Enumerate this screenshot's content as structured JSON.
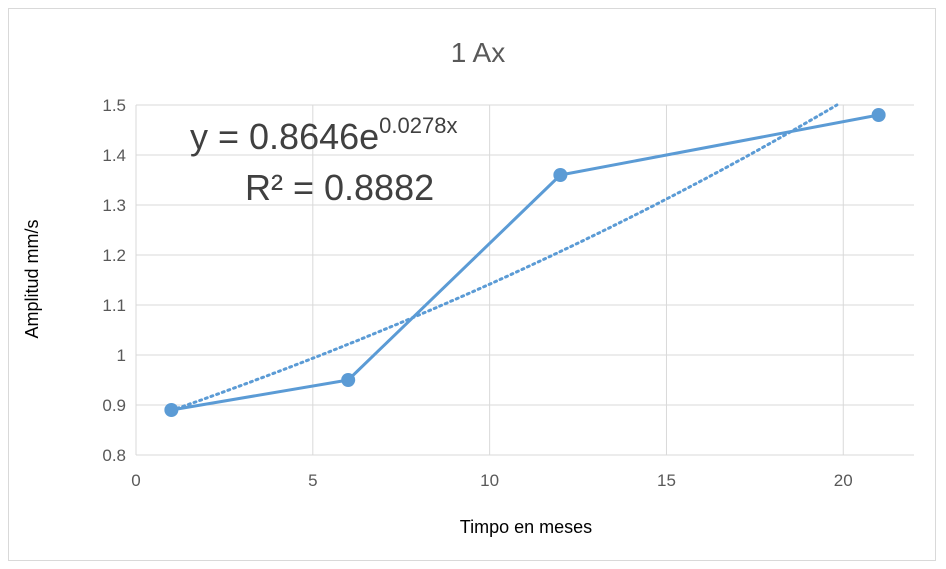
{
  "colors": {
    "series": "#5b9bd5",
    "grid": "#d9d9d9",
    "text": "#595959"
  },
  "chart_data": {
    "type": "scatter",
    "title": "1 Ax",
    "xlabel": "Timpo en meses",
    "ylabel": "Amplitud mm/s",
    "xlim": [
      0,
      22
    ],
    "ylim": [
      0.8,
      1.5
    ],
    "x_ticks": [
      0,
      5,
      10,
      15,
      20
    ],
    "y_ticks": [
      0.8,
      0.9,
      1,
      1.1,
      1.2,
      1.3,
      1.4,
      1.5
    ],
    "x_tick_labels": [
      "0",
      "5",
      "10",
      "15",
      "20"
    ],
    "y_tick_labels": [
      "0.8",
      "0.9",
      "1",
      "1.1",
      "1.2",
      "1.3",
      "1.4",
      "1.5"
    ],
    "grid": true,
    "legend": "none",
    "series": [
      {
        "x": [
          1,
          6,
          12,
          21
        ],
        "y": [
          0.89,
          0.95,
          1.36,
          1.48
        ],
        "style": "line-markers"
      }
    ],
    "trendline": {
      "type": "exponential",
      "a": 0.8646,
      "b": 0.0278,
      "style": "dotted"
    },
    "equation": {
      "prefix": "y = 0.8646e",
      "exponent": "0.0278x",
      "r2": "R² = 0.8882"
    }
  }
}
